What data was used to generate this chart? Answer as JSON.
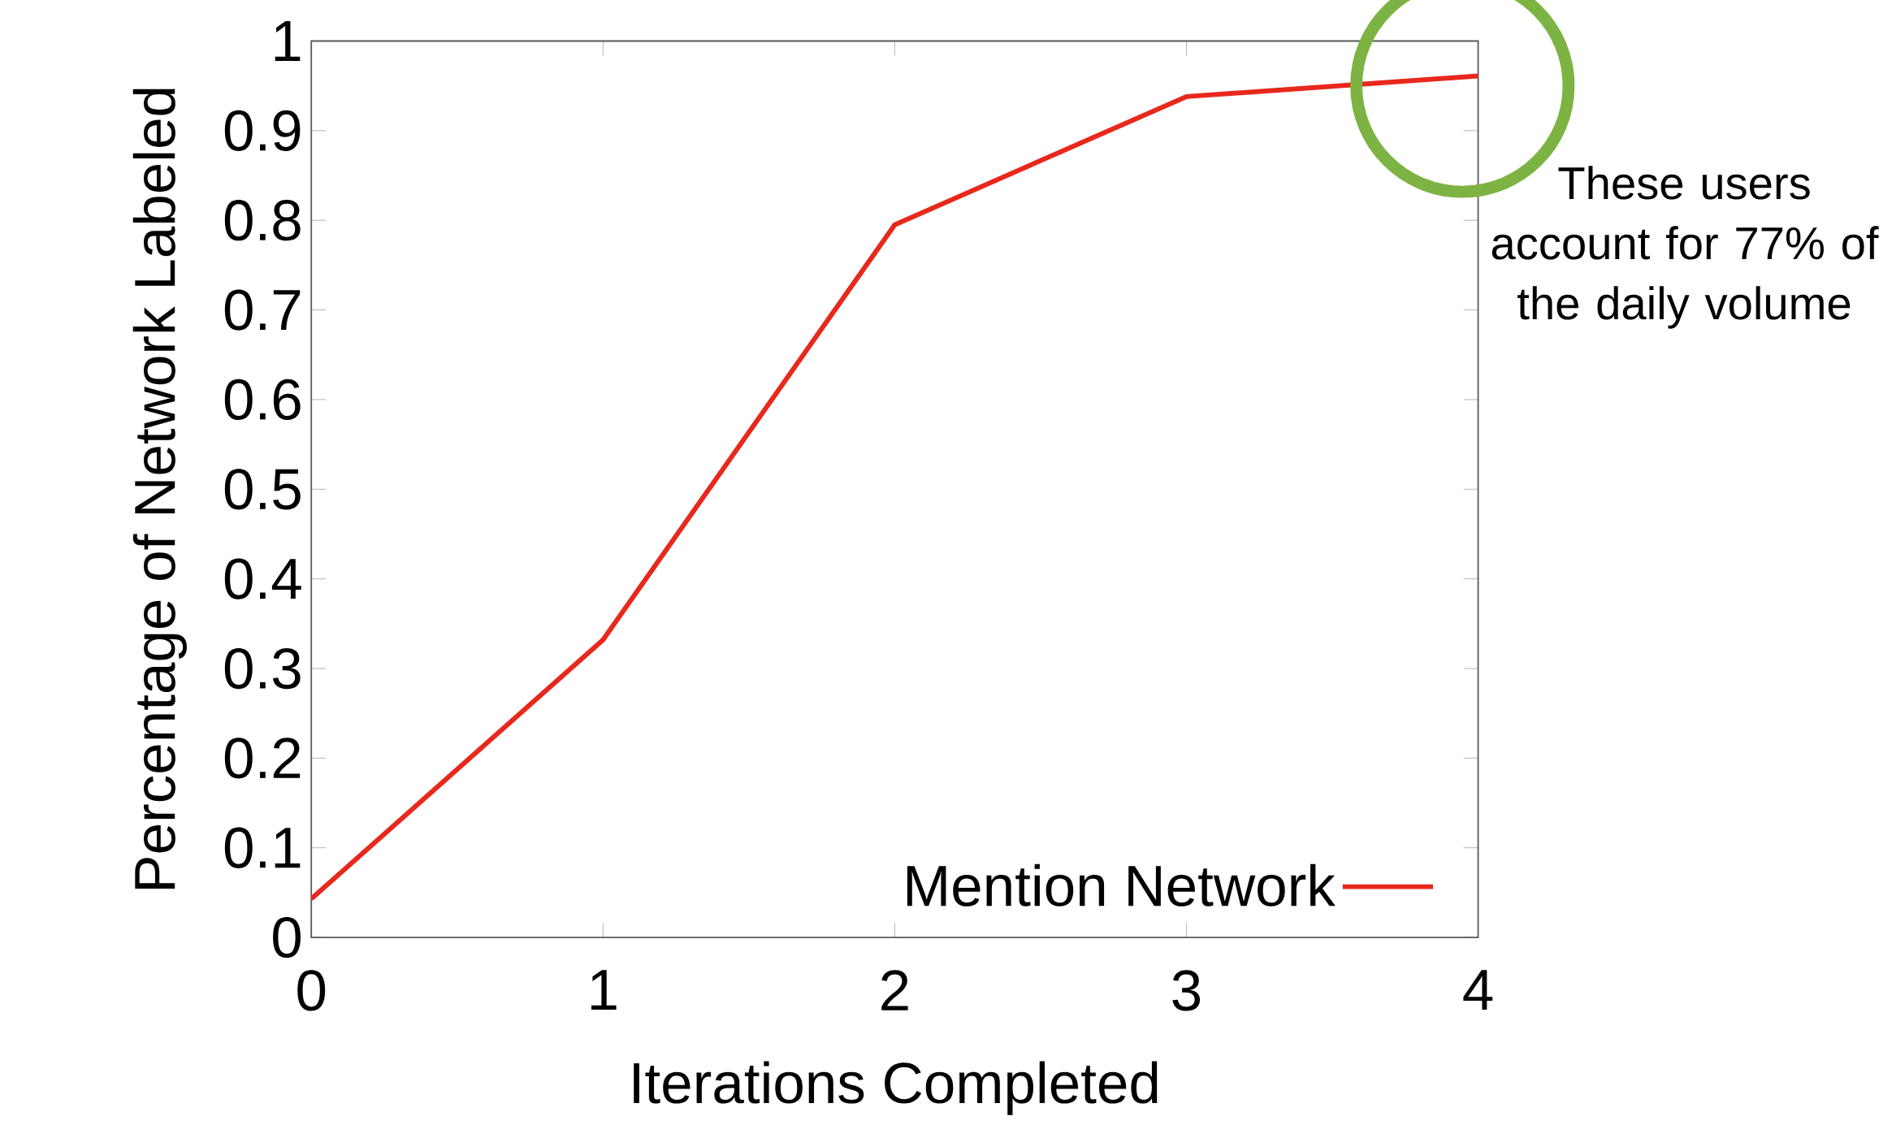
{
  "chart_data": {
    "type": "line",
    "xlabel": "Iterations Completed",
    "ylabel": "Percentage of Network Labeled",
    "x": [
      0,
      1,
      2,
      3,
      4
    ],
    "series": [
      {
        "name": "Mention Network",
        "color": "#e8281c",
        "values": [
          0.043,
          0.332,
          0.795,
          0.938,
          0.961
        ]
      }
    ],
    "xlim": [
      0,
      4
    ],
    "ylim": [
      0,
      1
    ],
    "xticks": [
      0,
      1,
      2,
      3,
      4
    ],
    "yticks": [
      0,
      0.1,
      0.2,
      0.3,
      0.4,
      0.5,
      0.6,
      0.7,
      0.8,
      0.9,
      1
    ],
    "legend": "bottom right",
    "annotations": [
      "These users account for 77% of the daily volume"
    ]
  }
}
